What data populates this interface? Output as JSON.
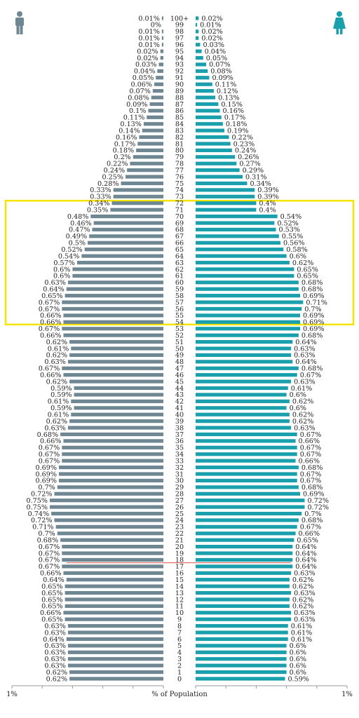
{
  "chart_data": {
    "type": "bar",
    "orientation": "horizontal-population-pyramid",
    "xlabel": "% of Population",
    "xlim_left": "1%",
    "xlim_right": "1%",
    "x_max_percent": 1.0,
    "grid": false,
    "male_color": "#6f8792",
    "female_color": "#1aa0ad",
    "highlight_color": "#f5e400",
    "highlight_range": [
      "54",
      "72"
    ],
    "marker_color": "#d9534f",
    "marker_age": "18",
    "icons": {
      "left": "male-icon",
      "right": "female-icon"
    },
    "ages": [
      "100+",
      "99",
      "98",
      "97",
      "96",
      "95",
      "94",
      "93",
      "92",
      "91",
      "90",
      "89",
      "88",
      "87",
      "86",
      "85",
      "84",
      "83",
      "82",
      "81",
      "80",
      "79",
      "78",
      "77",
      "76",
      "75",
      "74",
      "73",
      "72",
      "71",
      "70",
      "69",
      "68",
      "67",
      "66",
      "65",
      "64",
      "63",
      "62",
      "61",
      "60",
      "59",
      "58",
      "57",
      "56",
      "55",
      "54",
      "53",
      "52",
      "51",
      "50",
      "49",
      "48",
      "47",
      "46",
      "45",
      "44",
      "43",
      "42",
      "41",
      "40",
      "39",
      "38",
      "37",
      "36",
      "35",
      "34",
      "33",
      "32",
      "31",
      "30",
      "29",
      "28",
      "27",
      "26",
      "25",
      "24",
      "23",
      "22",
      "21",
      "20",
      "19",
      "18",
      "17",
      "16",
      "15",
      "14",
      "13",
      "12",
      "11",
      "10",
      "9",
      "8",
      "7",
      "6",
      "5",
      "4",
      "3",
      "2",
      "1",
      "0"
    ],
    "male": [
      0.01,
      0,
      0.01,
      0.01,
      0.01,
      0.02,
      0.02,
      0.03,
      0.04,
      0.05,
      0.06,
      0.07,
      0.08,
      0.09,
      0.1,
      0.11,
      0.13,
      0.14,
      0.16,
      0.17,
      0.18,
      0.2,
      0.22,
      0.24,
      0.25,
      0.28,
      0.33,
      0.33,
      0.34,
      0.35,
      0.48,
      0.46,
      0.47,
      0.49,
      0.5,
      0.52,
      0.54,
      0.57,
      0.6,
      0.6,
      0.63,
      0.64,
      0.65,
      0.67,
      0.67,
      0.66,
      0.66,
      0.67,
      0.66,
      0.62,
      0.61,
      0.62,
      0.63,
      0.67,
      0.66,
      0.62,
      0.59,
      0.59,
      0.61,
      0.59,
      0.61,
      0.62,
      0.63,
      0.68,
      0.66,
      0.67,
      0.67,
      0.67,
      0.69,
      0.69,
      0.69,
      0.7,
      0.72,
      0.75,
      0.75,
      0.74,
      0.72,
      0.71,
      0.7,
      0.68,
      0.67,
      0.67,
      0.67,
      0.67,
      0.66,
      0.64,
      0.65,
      0.65,
      0.65,
      0.65,
      0.66,
      0.65,
      0.63,
      0.63,
      0.64,
      0.63,
      0.63,
      0.63,
      0.63,
      0.62,
      0.62
    ],
    "female": [
      0.02,
      0.01,
      0.02,
      0.02,
      0.03,
      0.04,
      0.05,
      0.07,
      0.08,
      0.09,
      0.11,
      0.12,
      0.13,
      0.15,
      0.16,
      0.17,
      0.18,
      0.19,
      0.22,
      0.23,
      0.24,
      0.26,
      0.27,
      0.29,
      0.31,
      0.34,
      0.39,
      0.39,
      0.4,
      0.4,
      0.54,
      0.52,
      0.53,
      0.55,
      0.56,
      0.58,
      0.6,
      0.62,
      0.65,
      0.65,
      0.68,
      0.68,
      0.69,
      0.71,
      0.7,
      0.69,
      0.69,
      0.69,
      0.68,
      0.64,
      0.63,
      0.63,
      0.64,
      0.68,
      0.67,
      0.63,
      0.61,
      0.6,
      0.62,
      0.6,
      0.62,
      0.62,
      0.63,
      0.67,
      0.66,
      0.67,
      0.67,
      0.66,
      0.68,
      0.67,
      0.67,
      0.68,
      0.69,
      0.72,
      0.72,
      0.7,
      0.68,
      0.67,
      0.66,
      0.65,
      0.64,
      0.64,
      0.64,
      0.64,
      0.63,
      0.62,
      0.62,
      0.63,
      0.62,
      0.62,
      0.63,
      0.63,
      0.61,
      0.61,
      0.61,
      0.6,
      0.6,
      0.6,
      0.6,
      0.6,
      0.59
    ]
  }
}
